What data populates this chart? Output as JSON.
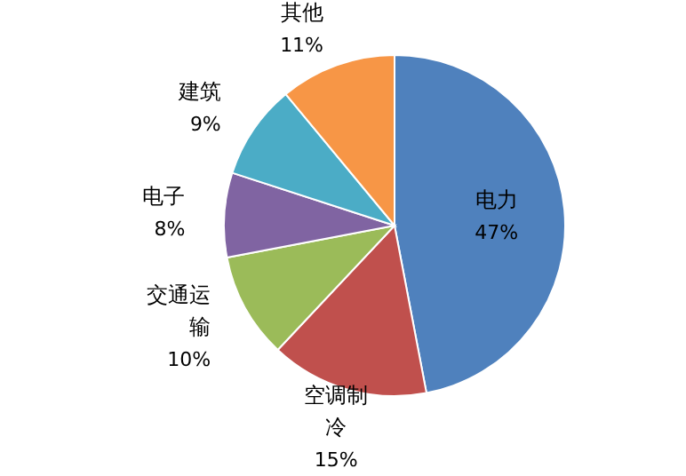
{
  "chart_data": {
    "type": "pie",
    "categories": [
      "电力",
      "空调制冷",
      "交通运输",
      "电子",
      "建筑",
      "其他"
    ],
    "values": [
      47,
      15,
      10,
      8,
      9,
      11
    ],
    "colors": [
      "#4f81bd",
      "#c0504d",
      "#9bbb59",
      "#8064a2",
      "#4bacc6",
      "#f79646"
    ],
    "value_labels": [
      "47%",
      "15%",
      "10%",
      "8%",
      "9%",
      "11%"
    ]
  }
}
